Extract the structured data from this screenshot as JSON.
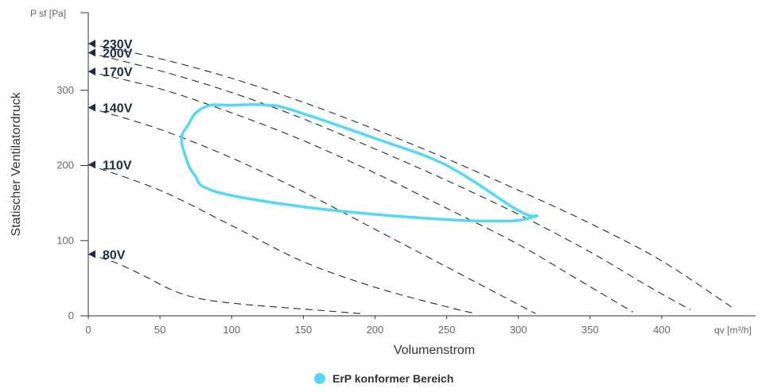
{
  "chart_data": {
    "type": "line",
    "xlabel": "Volumenstrom",
    "ylabel": "Statischer Ventilatordruck",
    "x_unit": "qv [m³/h]",
    "y_unit": "P sf [Pa]",
    "xlim": [
      0,
      450
    ],
    "ylim": [
      0,
      400
    ],
    "x_ticks": [
      0,
      50,
      100,
      150,
      200,
      250,
      300,
      350,
      400
    ],
    "y_ticks": [
      0,
      100,
      200,
      300
    ],
    "grid": false,
    "curve_color": "#1d2b45",
    "region_color": "#55d8f5",
    "voltage_curves": [
      {
        "label": "230V",
        "points": [
          [
            0,
            362
          ],
          [
            50,
            342
          ],
          [
            100,
            316
          ],
          [
            150,
            284
          ],
          [
            200,
            248
          ],
          [
            250,
            209
          ],
          [
            300,
            167
          ],
          [
            350,
            123
          ],
          [
            400,
            73
          ],
          [
            450,
            10
          ]
        ]
      },
      {
        "label": "200V",
        "points": [
          [
            0,
            350
          ],
          [
            50,
            326
          ],
          [
            100,
            297
          ],
          [
            150,
            262
          ],
          [
            200,
            222
          ],
          [
            250,
            180
          ],
          [
            300,
            135
          ],
          [
            350,
            85
          ],
          [
            390,
            40
          ],
          [
            420,
            8
          ]
        ]
      },
      {
        "label": "170V",
        "points": [
          [
            0,
            325
          ],
          [
            50,
            302
          ],
          [
            100,
            270
          ],
          [
            150,
            233
          ],
          [
            200,
            190
          ],
          [
            250,
            143
          ],
          [
            300,
            95
          ],
          [
            340,
            50
          ],
          [
            380,
            5
          ]
        ]
      },
      {
        "label": "140V",
        "points": [
          [
            0,
            277
          ],
          [
            50,
            248
          ],
          [
            100,
            210
          ],
          [
            150,
            165
          ],
          [
            200,
            115
          ],
          [
            250,
            65
          ],
          [
            290,
            25
          ],
          [
            312,
            3
          ]
        ]
      },
      {
        "label": "110V",
        "points": [
          [
            0,
            201
          ],
          [
            50,
            167
          ],
          [
            100,
            120
          ],
          [
            150,
            72
          ],
          [
            200,
            38
          ],
          [
            250,
            12
          ],
          [
            270,
            3
          ]
        ]
      },
      {
        "label": "80V",
        "points": [
          [
            0,
            82
          ],
          [
            20,
            70
          ],
          [
            40,
            52
          ],
          [
            60,
            33
          ],
          [
            80,
            22
          ],
          [
            110,
            15
          ],
          [
            150,
            9
          ],
          [
            190,
            3
          ]
        ]
      }
    ],
    "region": {
      "name": "ErP konformer Bereich",
      "points": [
        [
          313,
          133
        ],
        [
          300,
          127
        ],
        [
          280,
          126
        ],
        [
          250,
          128
        ],
        [
          200,
          135
        ],
        [
          150,
          145
        ],
        [
          100,
          160
        ],
        [
          80,
          172
        ],
        [
          75,
          185
        ],
        [
          70,
          200
        ],
        [
          65,
          235
        ],
        [
          70,
          255
        ],
        [
          75,
          270
        ],
        [
          85,
          280
        ],
        [
          100,
          280
        ],
        [
          115,
          281
        ],
        [
          125,
          280
        ],
        [
          140,
          275
        ],
        [
          200,
          236
        ],
        [
          250,
          200
        ],
        [
          300,
          140
        ],
        [
          313,
          133
        ]
      ]
    },
    "legend": [
      {
        "label": "ErP konformer Bereich",
        "color": "#55d8f5"
      }
    ],
    "legend_position": "bottom-center"
  }
}
